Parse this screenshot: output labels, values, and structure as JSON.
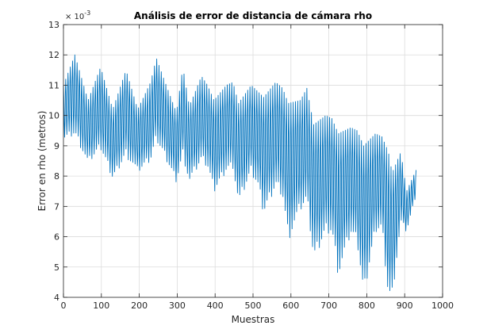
{
  "chart_data": {
    "type": "line",
    "title": "Análisis de error de distancia de cámara rho",
    "xlabel": "Muestras",
    "ylabel": "Error en rho (metros)",
    "exponent_base": "× 10",
    "exponent_power": "-3",
    "xlim": [
      0,
      1000
    ],
    "ylim": [
      4,
      13
    ],
    "y_scale_factor": 0.001,
    "xticks": [
      0,
      100,
      200,
      300,
      400,
      500,
      600,
      700,
      800,
      900,
      1000
    ],
    "yticks": [
      4,
      5,
      6,
      7,
      8,
      9,
      10,
      11,
      12,
      13
    ],
    "grid": true,
    "line_color": "#0072BD",
    "series": [
      {
        "name": "",
        "envelope_samples": [
          0,
          30,
          65,
          98,
          130,
          165,
          196,
          230,
          245,
          265,
          298,
          315,
          332,
          364,
          380,
          397,
          430,
          447,
          462,
          495,
          512,
          528,
          560,
          578,
          593,
          625,
          642,
          660,
          692,
          708,
          725,
          758,
          775,
          792,
          823,
          840,
          857,
          867,
          890,
          905,
          930
        ],
        "envelope_high": [
          11.0,
          12.0,
          10.5,
          11.6,
          10.2,
          11.5,
          10.2,
          11.1,
          11.9,
          11.2,
          10.1,
          11.6,
          10.3,
          11.3,
          11.0,
          10.5,
          11.0,
          11.1,
          10.4,
          11.0,
          10.8,
          10.6,
          11.1,
          10.9,
          10.4,
          10.5,
          10.9,
          9.7,
          10.0,
          9.9,
          9.4,
          9.6,
          9.5,
          9.0,
          9.4,
          9.3,
          8.8,
          8.1,
          8.8,
          7.5,
          8.2
        ],
        "envelope_low": [
          9.3,
          9.5,
          8.5,
          9.0,
          8.0,
          8.8,
          8.2,
          8.6,
          9.3,
          8.8,
          7.9,
          8.8,
          7.9,
          8.6,
          8.4,
          7.6,
          8.3,
          8.4,
          7.2,
          8.2,
          7.8,
          6.9,
          7.8,
          7.5,
          6.1,
          7.0,
          7.3,
          5.4,
          6.3,
          6.3,
          4.9,
          6.2,
          5.9,
          4.2,
          6.3,
          6.4,
          4.2,
          4.2,
          6.5,
          6.2,
          7.4
        ],
        "oscillation_period": 6
      }
    ]
  }
}
